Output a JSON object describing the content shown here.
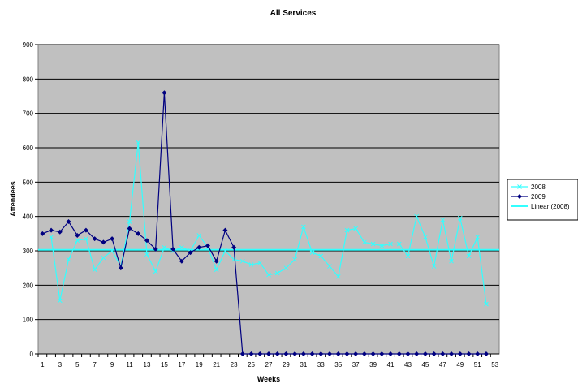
{
  "chart_data": {
    "type": "line",
    "title": "All Services",
    "xlabel": "Weeks",
    "ylabel": "Attendees",
    "xlim": [
      1,
      53
    ],
    "ylim": [
      0,
      900
    ],
    "yticks": [
      0,
      100,
      200,
      300,
      400,
      500,
      600,
      700,
      800,
      900
    ],
    "xticks": [
      1,
      3,
      5,
      7,
      9,
      11,
      13,
      15,
      17,
      19,
      21,
      23,
      25,
      27,
      29,
      31,
      33,
      35,
      37,
      39,
      41,
      43,
      45,
      47,
      49,
      51,
      53
    ],
    "grid": "horizontal",
    "plot_background": "#c0c0c0",
    "legend_position": "right",
    "legend": [
      "2008",
      "2009",
      "Linear (2008)"
    ],
    "series": [
      {
        "name": "2008",
        "color": "#33ffff",
        "marker": "x",
        "x": [
          2,
          3,
          4,
          5,
          6,
          7,
          8,
          9,
          10,
          11,
          12,
          13,
          14,
          15,
          16,
          17,
          18,
          19,
          20,
          21,
          22,
          23,
          24,
          25,
          26,
          27,
          28,
          29,
          30,
          31,
          32,
          33,
          34,
          35,
          36,
          37,
          38,
          39,
          40,
          41,
          42,
          43,
          44,
          45,
          46,
          47,
          48,
          49,
          50,
          51,
          52
        ],
        "values": [
          340,
          155,
          275,
          330,
          335,
          245,
          280,
          300,
          255,
          385,
          615,
          290,
          240,
          310,
          300,
          310,
          300,
          345,
          310,
          245,
          300,
          275,
          270,
          260,
          265,
          230,
          235,
          250,
          275,
          370,
          295,
          285,
          255,
          225,
          360,
          365,
          325,
          320,
          315,
          320,
          320,
          285,
          400,
          340,
          255,
          390,
          270,
          395,
          285,
          340,
          145
        ]
      },
      {
        "name": "2009",
        "color": "#000080",
        "marker": "diamond",
        "x": [
          1,
          2,
          3,
          4,
          5,
          6,
          7,
          8,
          9,
          10,
          11,
          12,
          13,
          14,
          15,
          16,
          17,
          18,
          19,
          20,
          21,
          22,
          23,
          24,
          25,
          26,
          27,
          28,
          29,
          30,
          31,
          32,
          33,
          34,
          35,
          36,
          37,
          38,
          39,
          40,
          41,
          42,
          43,
          44,
          45,
          46,
          47,
          48,
          49,
          50,
          51,
          52
        ],
        "values": [
          350,
          360,
          355,
          385,
          345,
          360,
          335,
          325,
          335,
          250,
          365,
          350,
          330,
          305,
          760,
          305,
          270,
          295,
          310,
          315,
          270,
          360,
          310,
          0,
          0,
          0,
          0,
          0,
          0,
          0,
          0,
          0,
          0,
          0,
          0,
          0,
          0,
          0,
          0,
          0,
          0,
          0,
          0,
          0,
          0,
          0,
          0,
          0,
          0,
          0,
          0,
          0
        ]
      },
      {
        "name": "Linear (2008)",
        "color": "#33ffff",
        "marker": "none",
        "x": [
          1,
          53
        ],
        "values": [
          303,
          303
        ]
      }
    ]
  }
}
